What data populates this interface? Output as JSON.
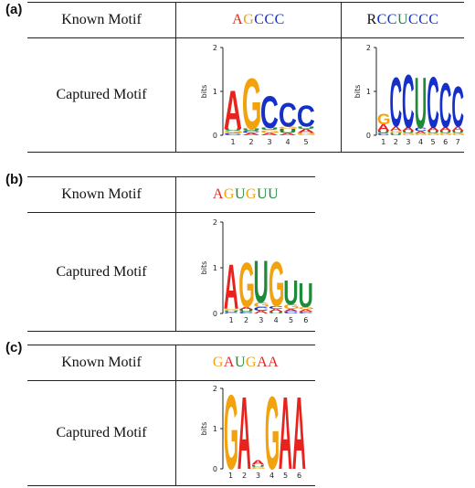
{
  "panels": [
    {
      "label": "(a)",
      "known_label": "Known Motif",
      "captured_label": "Captured Motif",
      "known": [
        {
          "seq": [
            [
              "A",
              "A"
            ],
            [
              "G",
              "G"
            ],
            [
              "C",
              "C"
            ],
            [
              "C",
              "C"
            ],
            [
              "C",
              "C"
            ]
          ]
        },
        {
          "seq": [
            [
              "R",
              "X"
            ],
            [
              "C",
              "C"
            ],
            [
              "C",
              "C"
            ],
            [
              "U",
              "U"
            ],
            [
              "C",
              "C"
            ],
            [
              "C",
              "C"
            ],
            [
              "C",
              "C"
            ]
          ]
        }
      ],
      "logos": [
        {
          "ylabel": "bits",
          "yticks": [
            "0",
            "1",
            "2"
          ],
          "positions": [
            "1",
            "2",
            "3",
            "4",
            "5"
          ],
          "columns": [
            [
              [
                "C",
                0.05
              ],
              [
                "G",
                0.05
              ],
              [
                "U",
                0.05
              ],
              [
                "A",
                0.9
              ]
            ],
            [
              [
                "A",
                0.05
              ],
              [
                "C",
                0.05
              ],
              [
                "U",
                0.05
              ],
              [
                "G",
                1.2
              ]
            ],
            [
              [
                "A",
                0.05
              ],
              [
                "G",
                0.07
              ],
              [
                "U",
                0.05
              ],
              [
                "C",
                0.75
              ]
            ],
            [
              [
                "A",
                0.05
              ],
              [
                "U",
                0.1
              ],
              [
                "G",
                0.05
              ],
              [
                "C",
                0.55
              ]
            ],
            [
              [
                "G",
                0.05
              ],
              [
                "A",
                0.1
              ],
              [
                "U",
                0.05
              ],
              [
                "C",
                0.5
              ]
            ]
          ]
        },
        {
          "ylabel": "bits",
          "yticks": [
            "0",
            "1",
            "2"
          ],
          "positions": [
            "1",
            "2",
            "3",
            "4",
            "5",
            "6",
            "7"
          ],
          "columns": [
            [
              [
                "C",
                0.05
              ],
              [
                "U",
                0.05
              ],
              [
                "A",
                0.15
              ],
              [
                "G",
                0.25
              ]
            ],
            [
              [
                "U",
                0.05
              ],
              [
                "G",
                0.05
              ],
              [
                "A",
                0.1
              ],
              [
                "C",
                1.15
              ]
            ],
            [
              [
                "G",
                0.05
              ],
              [
                "U",
                0.05
              ],
              [
                "A",
                0.08
              ],
              [
                "C",
                1.25
              ]
            ],
            [
              [
                "G",
                0.04
              ],
              [
                "A",
                0.05
              ],
              [
                "C",
                0.08
              ],
              [
                "U",
                1.2
              ]
            ],
            [
              [
                "G",
                0.05
              ],
              [
                "U",
                0.05
              ],
              [
                "A",
                0.08
              ],
              [
                "C",
                1.2
              ]
            ],
            [
              [
                "G",
                0.05
              ],
              [
                "U",
                0.05
              ],
              [
                "A",
                0.08
              ],
              [
                "C",
                1.05
              ]
            ],
            [
              [
                "G",
                0.05
              ],
              [
                "U",
                0.05
              ],
              [
                "A",
                0.1
              ],
              [
                "C",
                0.95
              ]
            ]
          ]
        }
      ]
    },
    {
      "label": "(b)",
      "known_label": "Known Motif",
      "captured_label": "Captured Motif",
      "known": [
        {
          "seq": [
            [
              "A",
              "A"
            ],
            [
              "G",
              "G"
            ],
            [
              "U",
              "U"
            ],
            [
              "G",
              "G"
            ],
            [
              "U",
              "U"
            ],
            [
              "U",
              "U"
            ]
          ]
        }
      ],
      "logos": [
        {
          "ylabel": "bits",
          "yticks": [
            "0",
            "1",
            "2"
          ],
          "positions": [
            "1",
            "2",
            "3",
            "4",
            "5",
            "6"
          ],
          "columns": [
            [
              [
                "C",
                0.03
              ],
              [
                "U",
                0.03
              ],
              [
                "G",
                0.04
              ],
              [
                "A",
                1.0
              ]
            ],
            [
              [
                "C",
                0.04
              ],
              [
                "U",
                0.05
              ],
              [
                "A",
                0.05
              ],
              [
                "G",
                1.0
              ]
            ],
            [
              [
                "A",
                0.06
              ],
              [
                "C",
                0.08
              ],
              [
                "G",
                0.1
              ],
              [
                "U",
                0.95
              ]
            ],
            [
              [
                "U",
                0.04
              ],
              [
                "A",
                0.06
              ],
              [
                "C",
                0.06
              ],
              [
                "G",
                1.0
              ]
            ],
            [
              [
                "C",
                0.05
              ],
              [
                "A",
                0.05
              ],
              [
                "G",
                0.1
              ],
              [
                "U",
                0.55
              ]
            ],
            [
              [
                "C",
                0.04
              ],
              [
                "A",
                0.05
              ],
              [
                "G",
                0.05
              ],
              [
                "U",
                0.55
              ]
            ]
          ]
        }
      ]
    },
    {
      "label": "(c)",
      "known_label": "Known Motif",
      "captured_label": "Captured Motif",
      "known": [
        {
          "seq": [
            [
              "G",
              "G"
            ],
            [
              "A",
              "A"
            ],
            [
              "U",
              "U"
            ],
            [
              "G",
              "G"
            ],
            [
              "A",
              "A"
            ],
            [
              "A",
              "A"
            ]
          ]
        }
      ],
      "logos": [
        {
          "ylabel": "bits",
          "yticks": [
            "0",
            "1",
            "2"
          ],
          "positions": [
            "1",
            "2",
            "3",
            "4",
            "5",
            "6"
          ],
          "columns": [
            [
              [
                "G",
                1.9
              ]
            ],
            [
              [
                "A",
                1.85
              ]
            ],
            [
              [
                "G",
                0.05
              ],
              [
                "U",
                0.05
              ],
              [
                "A",
                0.12
              ]
            ],
            [
              [
                "G",
                1.85
              ]
            ],
            [
              [
                "A",
                1.85
              ]
            ],
            [
              [
                "A",
                1.85
              ]
            ]
          ]
        }
      ]
    }
  ],
  "colors": {
    "A": "#e8231e",
    "C": "#1530c8",
    "G": "#f2a20c",
    "U": "#1f8a3a",
    "X": "#111111"
  }
}
